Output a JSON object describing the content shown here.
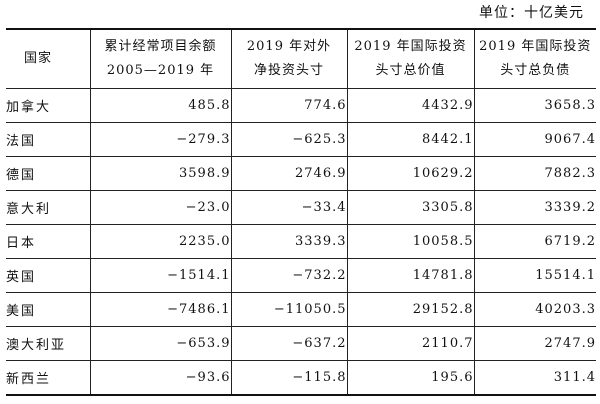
{
  "unit_note": "单位：十亿美元",
  "table": {
    "headers": [
      {
        "line1": "国家",
        "line2": ""
      },
      {
        "line1": "累计经常项目余额",
        "line2": "2005—2019 年"
      },
      {
        "line1": "2019 年对外",
        "line2": "净投资头寸"
      },
      {
        "line1": "2019 年国际投资",
        "line2": "头寸总价值"
      },
      {
        "line1": "2019 年国际投资",
        "line2": "头寸总负债"
      }
    ],
    "rows": [
      {
        "country": "加拿大",
        "current_account": "485.8",
        "net_position": "774.6",
        "total_value": "4432.9",
        "total_liabilities": "3658.3"
      },
      {
        "country": "法国",
        "current_account": "−279.3",
        "net_position": "−625.3",
        "total_value": "8442.1",
        "total_liabilities": "9067.4"
      },
      {
        "country": "德国",
        "current_account": "3598.9",
        "net_position": "2746.9",
        "total_value": "10629.2",
        "total_liabilities": "7882.3"
      },
      {
        "country": "意大利",
        "current_account": "−23.0",
        "net_position": "−33.4",
        "total_value": "3305.8",
        "total_liabilities": "3339.2"
      },
      {
        "country": "日本",
        "current_account": "2235.0",
        "net_position": "3339.3",
        "total_value": "10058.5",
        "total_liabilities": "6719.2"
      },
      {
        "country": "英国",
        "current_account": "−1514.1",
        "net_position": "−732.2",
        "total_value": "14781.8",
        "total_liabilities": "15514.1"
      },
      {
        "country": "美国",
        "current_account": "−7486.1",
        "net_position": "−11050.5",
        "total_value": "29152.8",
        "total_liabilities": "40203.3"
      },
      {
        "country": "澳大利亚",
        "current_account": "−653.9",
        "net_position": "−637.2",
        "total_value": "2110.7",
        "total_liabilities": "2747.9"
      },
      {
        "country": "新西兰",
        "current_account": "−93.6",
        "net_position": "−115.8",
        "total_value": "195.6",
        "total_liabilities": "311.4"
      }
    ]
  }
}
